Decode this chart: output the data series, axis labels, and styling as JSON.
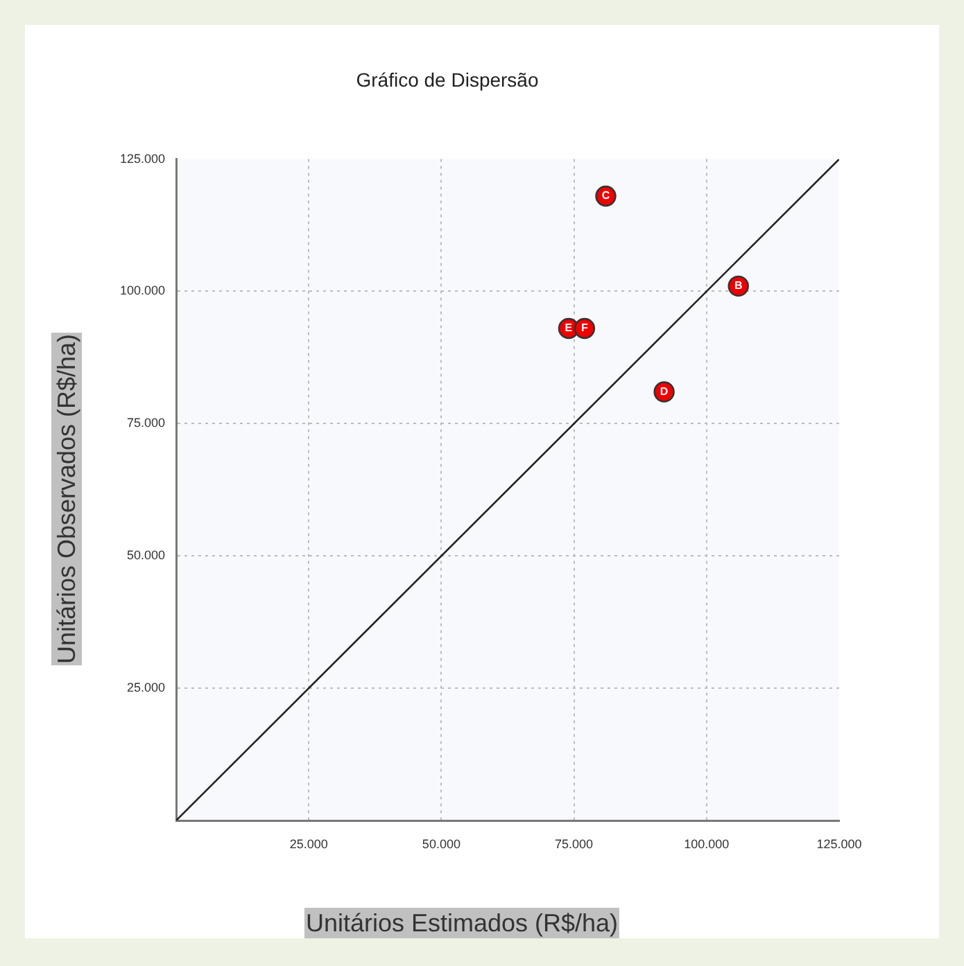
{
  "chart_data": {
    "type": "scatter",
    "title": "Gráfico de Dispersão",
    "xlabel": "Unitários Estimados (R$/ha)",
    "ylabel": "Unitários Observados (R$/ha)",
    "series": [
      {
        "color": "#ee0000",
        "marker": "circle",
        "x": [
          106000,
          81000,
          92000,
          74000,
          77000
        ],
        "values": [
          101000,
          118000,
          81000,
          93000,
          93000
        ]
      },
      {
        "type": "line",
        "color": "#222222",
        "marker": "none",
        "line_style": "solid",
        "x": [
          0,
          125000
        ],
        "values": [
          0,
          125000
        ]
      }
    ],
    "xlim": [
      0,
      125000
    ],
    "ylim": [
      0,
      125000
    ],
    "xticks": [
      {
        "value": 25000,
        "label": "25.000"
      },
      {
        "value": 50000,
        "label": "50.000"
      },
      {
        "value": 75000,
        "label": "75.000"
      },
      {
        "value": 100000,
        "label": "100.000"
      },
      {
        "value": 125000,
        "label": "125.000"
      }
    ],
    "yticks": [
      {
        "value": 25000,
        "label": "25.000"
      },
      {
        "value": 50000,
        "label": "50.000"
      },
      {
        "value": 75000,
        "label": "75.000"
      },
      {
        "value": 100000,
        "label": "100.000"
      },
      {
        "value": 125000,
        "label": "125.000"
      }
    ],
    "grid": true,
    "annotations": [
      {
        "text": "B",
        "x": 106000,
        "y": 101000
      },
      {
        "text": "C",
        "x": 81000,
        "y": 118000
      },
      {
        "text": "D",
        "x": 92000,
        "y": 81000
      },
      {
        "text": "E",
        "x": 74000,
        "y": 93000
      },
      {
        "text": "F",
        "x": 77000,
        "y": 93000
      }
    ]
  }
}
